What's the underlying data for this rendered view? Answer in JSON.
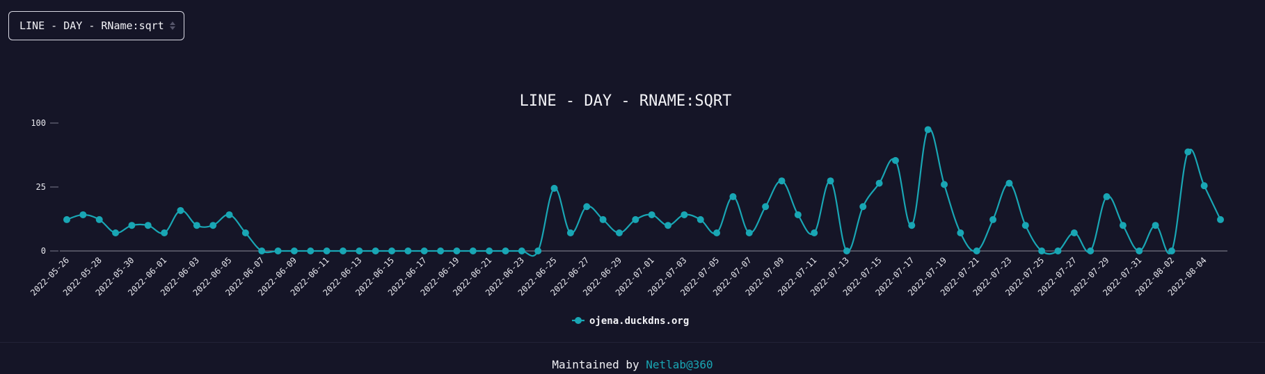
{
  "selector": {
    "value": "LINE - DAY - RName:sqrt"
  },
  "chart_data": {
    "type": "line",
    "title": "LINE - DAY - RNAME:SQRT",
    "y_ticks": [
      "100",
      "25",
      "0"
    ],
    "x_tick_labels": [
      "2022-05-26",
      "2022-05-28",
      "2022-05-30",
      "2022-06-01",
      "2022-06-03",
      "2022-06-05",
      "2022-06-07",
      "2022-06-09",
      "2022-06-11",
      "2022-06-13",
      "2022-06-15",
      "2022-06-17",
      "2022-06-19",
      "2022-06-21",
      "2022-06-23",
      "2022-06-25",
      "2022-06-27",
      "2022-06-29",
      "2022-07-01",
      "2022-07-03",
      "2022-07-05",
      "2022-07-07",
      "2022-07-09",
      "2022-07-11",
      "2022-07-13",
      "2022-07-15",
      "2022-07-17",
      "2022-07-19",
      "2022-07-21",
      "2022-07-23",
      "2022-07-25",
      "2022-07-27",
      "2022-07-29",
      "2022-07-31",
      "2022-08-02",
      "2022-08-04"
    ],
    "x_start": "2022-05-26",
    "x_end": "2022-08-04",
    "legend_placement": "bottom-center",
    "color": "#19a6b4",
    "series": [
      {
        "name": "ojena.duckdns.org",
        "values": [
          6,
          8,
          6,
          2,
          4,
          4,
          2,
          10,
          4,
          4,
          8,
          2,
          0,
          0,
          0,
          0,
          0,
          0,
          0,
          0,
          0,
          0,
          0,
          0,
          0,
          0,
          0,
          0,
          0,
          0,
          24,
          2,
          12,
          6,
          2,
          6,
          8,
          4,
          8,
          6,
          2,
          18,
          2,
          12,
          30,
          8,
          2,
          30,
          0,
          12,
          28,
          50,
          4,
          90,
          27,
          2,
          0,
          6,
          28,
          4,
          0,
          0,
          2,
          0,
          18,
          4,
          0,
          4,
          0,
          60,
          26,
          6
        ]
      }
    ]
  },
  "footer": {
    "prefix": "Maintained by",
    "link": "Netlab@360"
  }
}
